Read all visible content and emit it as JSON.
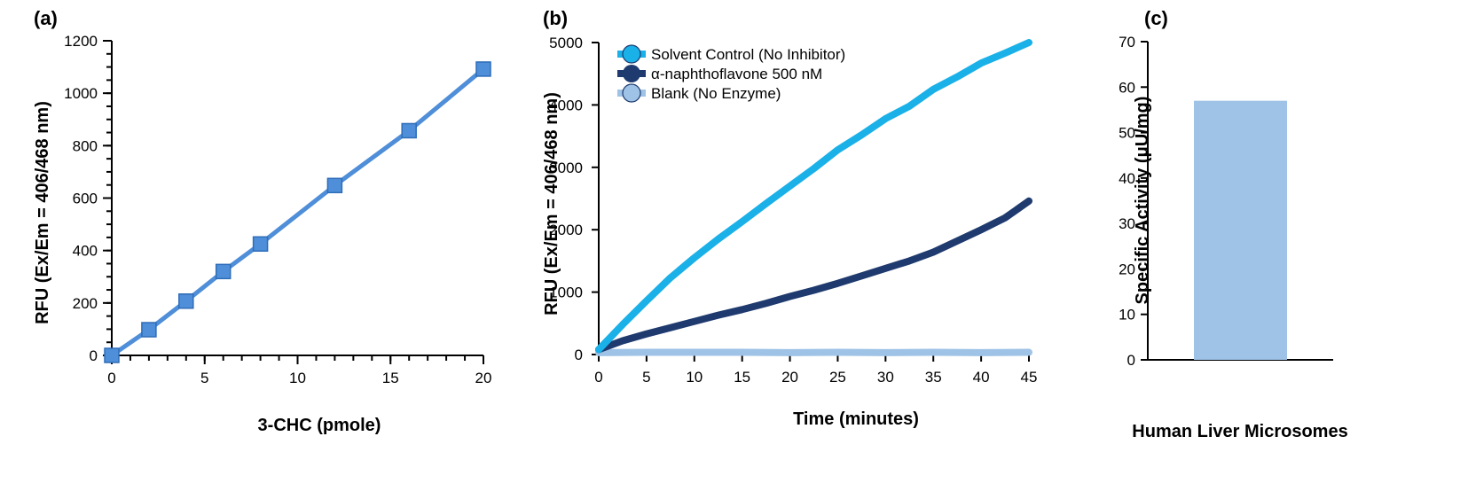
{
  "panels": {
    "a": "(a)",
    "b": "(b)",
    "c": "(c)"
  },
  "chart_data": [
    {
      "id": "a",
      "type": "line",
      "xlabel": "3-CHC (pmole)",
      "ylabel": "RFU (Ex/Em = 406/468 nm)",
      "xlim": [
        0,
        20
      ],
      "ylim": [
        0,
        1200
      ],
      "x_ticks": [
        0,
        5,
        10,
        15,
        20
      ],
      "y_ticks": [
        0,
        200,
        400,
        600,
        800,
        1000,
        1200
      ],
      "x_minor_step": 1,
      "y_minor_step": 50,
      "grid": false,
      "color": "#4f8ed8",
      "marker": "square",
      "x": [
        0,
        2,
        4,
        6,
        8,
        12,
        16,
        20
      ],
      "y": [
        0,
        98,
        207,
        320,
        425,
        648,
        857,
        1092
      ]
    },
    {
      "id": "b",
      "type": "line",
      "xlabel": "Time (minutes)",
      "ylabel": "RFU (Ex/Em = 406/468 nm)",
      "xlim": [
        0,
        45
      ],
      "ylim": [
        0,
        5000
      ],
      "x_ticks": [
        0,
        5,
        10,
        15,
        20,
        25,
        30,
        35,
        40,
        45
      ],
      "y_ticks": [
        0,
        1000,
        2000,
        3000,
        4000,
        5000
      ],
      "grid": false,
      "legend_position": "top-left",
      "series": [
        {
          "name": "Solvent Control (No Inhibitor)",
          "color": "#1ab0e8",
          "x": [
            0,
            2.5,
            5,
            7.5,
            10,
            12.5,
            15,
            17.5,
            20,
            22.5,
            25,
            27.5,
            30,
            32.5,
            35,
            37.5,
            40,
            42.5,
            45
          ],
          "y": [
            80,
            480,
            860,
            1230,
            1550,
            1850,
            2130,
            2420,
            2700,
            2980,
            3280,
            3520,
            3780,
            3980,
            4250,
            4450,
            4670,
            4830,
            5000
          ]
        },
        {
          "name": "α-naphthoflavone 500 nM",
          "color": "#1f3a6e",
          "x": [
            0,
            2.5,
            5,
            7.5,
            10,
            12.5,
            15,
            17.5,
            20,
            22.5,
            25,
            27.5,
            30,
            32.5,
            35,
            37.5,
            40,
            42.5,
            45
          ],
          "y": [
            80,
            220,
            330,
            430,
            530,
            630,
            720,
            820,
            930,
            1030,
            1140,
            1260,
            1380,
            1500,
            1640,
            1820,
            2000,
            2190,
            2460
          ]
        },
        {
          "name": "Blank (No Enzyme)",
          "color": "#9fc3e6",
          "x": [
            0,
            5,
            10,
            15,
            20,
            25,
            30,
            35,
            40,
            45
          ],
          "y": [
            30,
            35,
            35,
            35,
            30,
            35,
            30,
            35,
            30,
            35
          ]
        }
      ]
    },
    {
      "id": "c",
      "type": "bar",
      "categories": [
        "Human Liver Microsomes"
      ],
      "values": [
        57
      ],
      "ylabel": "Specific Activity (μU/mg)",
      "xlabel": "",
      "ylim": [
        0,
        70
      ],
      "y_ticks": [
        0,
        10,
        20,
        30,
        40,
        50,
        60,
        70
      ],
      "grid": false,
      "color": "#9fc3e6"
    }
  ]
}
